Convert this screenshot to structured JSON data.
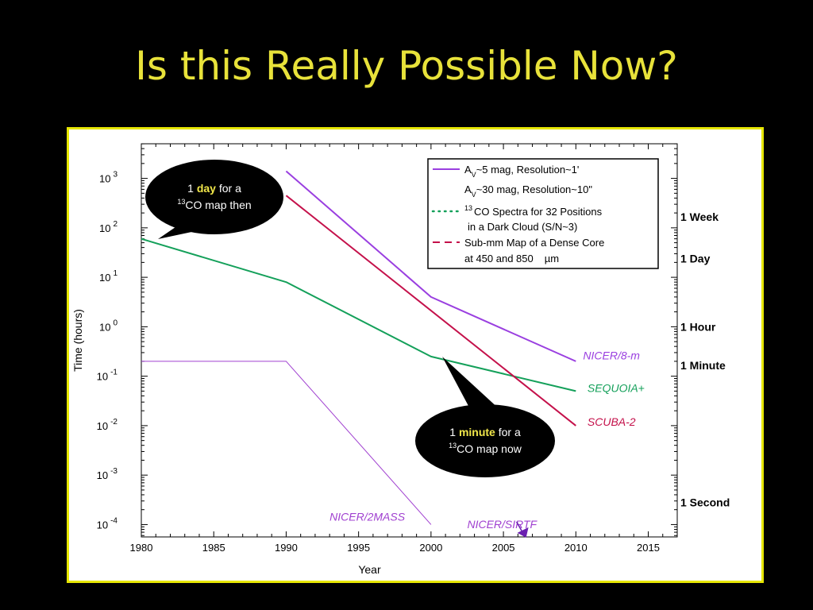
{
  "slide": {
    "title": "Is this Really Possible Now?"
  },
  "colors": {
    "background": "#000000",
    "title": "#e8e23a",
    "frame_border": "#e6e600",
    "purple": "#9a3fe0",
    "violet": "#a040d0",
    "green": "#14a05a",
    "crimson": "#c4104a",
    "bubble": "#000000"
  },
  "chart_data": {
    "type": "line",
    "xlabel": "Year",
    "ylabel": "Time (hours)",
    "xlim": [
      1980,
      2017
    ],
    "x_ticks": [
      "1980",
      "1985",
      "1990",
      "1995",
      "2000",
      "2005",
      "2010",
      "2015"
    ],
    "y_scale": "log",
    "ylim_log10": [
      -4.25,
      3.7
    ],
    "y_ticks": [
      {
        "base": "10",
        "exp": "3",
        "log10": 3
      },
      {
        "base": "10",
        "exp": "2",
        "log10": 2
      },
      {
        "base": "10",
        "exp": "1",
        "log10": 1
      },
      {
        "base": "10",
        "exp": "0",
        "log10": 0
      },
      {
        "base": "10",
        "exp": "-1",
        "log10": -1
      },
      {
        "base": "10",
        "exp": "-2",
        "log10": -2
      },
      {
        "base": "10",
        "exp": "-3",
        "log10": -3
      },
      {
        "base": "10",
        "exp": "-4",
        "log10": -4
      }
    ],
    "right_axis_labels": [
      {
        "text": "1 Week",
        "hours": 168
      },
      {
        "text": "1 Day",
        "hours": 24
      },
      {
        "text": "1 Hour",
        "hours": 1
      },
      {
        "text": "1 Minute",
        "hours": 0.1667
      },
      {
        "text": "1 Second",
        "hours": 0.00028
      }
    ],
    "series": [
      {
        "name": "NICER/8-m",
        "color": "#9a3fe0",
        "style": "solid",
        "width": 2,
        "x": [
          1990,
          2000,
          2010
        ],
        "y": [
          1400,
          4,
          0.2
        ]
      },
      {
        "name": "SEQUOIA+",
        "color": "#14a05a",
        "style": "solid",
        "width": 2,
        "x": [
          1980,
          1990,
          2000,
          2010
        ],
        "y": [
          60,
          8,
          0.25,
          0.05
        ]
      },
      {
        "name": "SCUBA-2",
        "color": "#c4104a",
        "style": "solid",
        "width": 2,
        "x": [
          1990,
          2010
        ],
        "y": [
          450,
          0.01
        ]
      },
      {
        "name": "NICER/2MASS",
        "color": "#a040d0",
        "style": "solid",
        "width": 1,
        "x": [
          1980,
          1990,
          2000
        ],
        "y": [
          0.2,
          0.2,
          0.0001
        ]
      }
    ],
    "annotations": [
      {
        "text": "NICER/8-m",
        "x": 2010.5,
        "y": 0.22,
        "color": "#9a3fe0"
      },
      {
        "text": "SEQUOIA+",
        "x": 2010.8,
        "y": 0.048,
        "color": "#14a05a"
      },
      {
        "text": "SCUBA-2",
        "x": 2010.8,
        "y": 0.01,
        "color": "#c4104a"
      },
      {
        "text": "NICER/2MASS",
        "x": 1993,
        "y": 0.00012,
        "color": "#a040d0"
      },
      {
        "text": "NICER/SIRTF",
        "x": 2002.5,
        "y": 8.5e-05,
        "color": "#a040d0"
      }
    ],
    "sirtf_marker": {
      "x": 2006.4,
      "y": 6.3e-05
    },
    "legend": {
      "placement": "top-right",
      "entries": [
        {
          "label": "A",
          "sub": "V",
          "rest": "~5 mag, Resolution~1'",
          "line": "solid",
          "color": "#9a3fe0"
        },
        {
          "label": "A",
          "sub": "V",
          "rest": "~30 mag, Resolution~10\"",
          "line": "none",
          "color": ""
        },
        {
          "sup": "13",
          "rest": "CO Spectra for 32 Positions",
          "line": "dotted",
          "color": "#14a05a"
        },
        {
          "rest": "in a Dark Cloud (S/N~3)",
          "line": "none",
          "color": ""
        },
        {
          "rest": "Sub-mm Map of a Dense Core",
          "line": "dashed",
          "color": "#c4104a"
        },
        {
          "rest": "at 450 and 850",
          "mu": "µm",
          "line": "none",
          "color": ""
        }
      ]
    },
    "callouts": [
      {
        "prefix": "1 ",
        "highlight": "day",
        "suffix": " for a",
        "sup": "13",
        "line2": "CO map then"
      },
      {
        "prefix": "1 ",
        "highlight": "minute",
        "suffix": " for a",
        "sup": "13",
        "line2": "CO map now"
      }
    ]
  }
}
